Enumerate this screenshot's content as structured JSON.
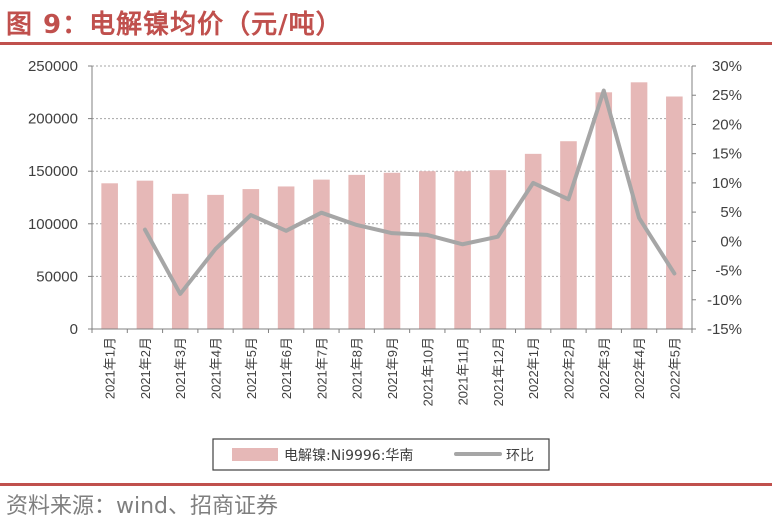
{
  "header": {
    "title": "图 9：电解镍均价（元/吨）"
  },
  "footer": {
    "source": "资料来源：wind、招商证券"
  },
  "chart_data": {
    "type": "bar",
    "categories": [
      "2021年1月",
      "2021年2月",
      "2021年3月",
      "2021年4月",
      "2021年5月",
      "2021年6月",
      "2021年7月",
      "2021年8月",
      "2021年9月",
      "2021年10月",
      "2021年11月",
      "2021年12月",
      "2022年1月",
      "2022年2月",
      "2022年3月",
      "2022年4月",
      "2022年5月"
    ],
    "series": [
      {
        "name": "电解镍:Ni9996:华南",
        "type": "bar",
        "axis": "left",
        "color": "#e6b8b7",
        "values": [
          138500,
          141000,
          128500,
          127500,
          133000,
          135500,
          142000,
          146500,
          148500,
          150000,
          150000,
          151000,
          166500,
          178500,
          225000,
          234500,
          221000
        ]
      },
      {
        "name": "环比",
        "type": "line",
        "axis": "right",
        "unit": "%",
        "color": "#a6a6a6",
        "values": [
          null,
          2.0,
          -9.0,
          -1.3,
          4.5,
          1.8,
          4.9,
          2.8,
          1.4,
          1.1,
          -0.5,
          0.8,
          10.0,
          7.2,
          25.8,
          4.0,
          -5.5
        ]
      }
    ],
    "yleft": {
      "min": 0,
      "max": 250000,
      "step": 50000,
      "ticks": [
        "0",
        "50000",
        "100000",
        "150000",
        "200000",
        "250000"
      ]
    },
    "yright": {
      "min": -15,
      "max": 30,
      "step": 5,
      "ticks": [
        "-15%",
        "-10%",
        "-5%",
        "0%",
        "5%",
        "10%",
        "15%",
        "20%",
        "25%",
        "30%"
      ]
    },
    "grid": true,
    "legend": {
      "position": "bottom",
      "entries": [
        "电解镍:Ni9996:华南",
        "环比"
      ]
    }
  }
}
